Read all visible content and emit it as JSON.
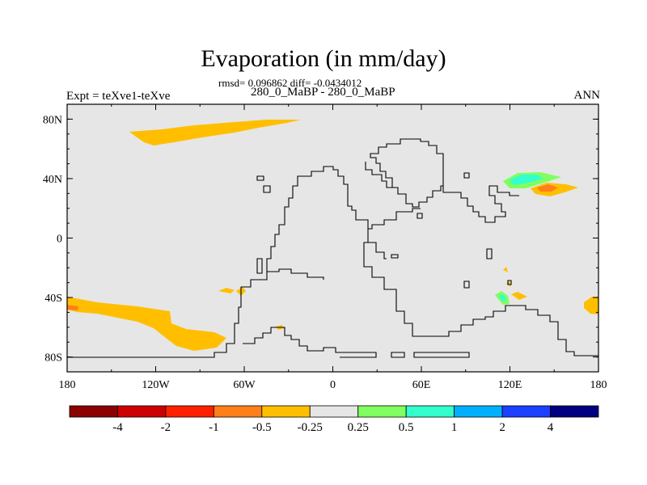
{
  "plot": {
    "title": "Evaporation (in mm/day)",
    "stats": "rmsd= 0.096862 diff= -0.0434012",
    "case_label": "280_0_MaBP - 280_0_MaBP",
    "experiment": "Expt = teXve1-teXve",
    "season": "ANN"
  },
  "axes": {
    "lat_ticks": [
      {
        "value": 80,
        "label": "80N"
      },
      {
        "value": 40,
        "label": "40N"
      },
      {
        "value": 0,
        "label": "0"
      },
      {
        "value": -40,
        "label": "40S"
      },
      {
        "value": -80,
        "label": "80S"
      }
    ],
    "lon_ticks": [
      {
        "value": -180,
        "label": "180"
      },
      {
        "value": -120,
        "label": "120W"
      },
      {
        "value": -60,
        "label": "60W"
      },
      {
        "value": 0,
        "label": "0"
      },
      {
        "value": 60,
        "label": "60E"
      },
      {
        "value": 120,
        "label": "120E"
      },
      {
        "value": 180,
        "label": "180"
      }
    ],
    "lon_range": [
      -180,
      180
    ],
    "lat_range": [
      -90,
      90
    ]
  },
  "colorbar": {
    "colors": [
      "#8b0000",
      "#cc0000",
      "#ff2000",
      "#ff7f1a",
      "#ffbf00",
      "#e6e6e6",
      "#80ff60",
      "#33ffcc",
      "#00b0ff",
      "#1c40ff",
      "#000080"
    ],
    "labels": [
      "-4",
      "-2",
      "-1",
      "-0.5",
      "-0.25",
      "0.25",
      "0.5",
      "1",
      "2",
      "4"
    ]
  },
  "style": {
    "background": "#e6e6e6",
    "coast_color": "#000000"
  },
  "chart_data": {
    "type": "heatmap",
    "title": "Evaporation (in mm/day)",
    "xlim": [
      -180,
      180
    ],
    "ylim": [
      -90,
      90
    ],
    "levels": [
      -4,
      -2,
      -1,
      -0.5,
      -0.25,
      0.25,
      0.5,
      1,
      2,
      4
    ],
    "regions": [
      {
        "level_band": "-0.5 to -0.25",
        "lon": [
          -140,
          -20
        ],
        "lat": [
          65,
          81
        ]
      },
      {
        "level_band": "-0.5 to -0.25",
        "lon": [
          -180,
          -80
        ],
        "lat": [
          -82,
          -40
        ]
      },
      {
        "level_band": "-0.25 to -0.5",
        "lon": [
          -80,
          -60
        ],
        "lat": [
          -42,
          -34
        ]
      },
      {
        "level_band": "-0.5 to -0.25",
        "lon": [
          165,
          180
        ],
        "lat": [
          -52,
          -40
        ]
      },
      {
        "level_band": "-1 to -0.5",
        "lon": [
          -180,
          -172
        ],
        "lat": [
          -48,
          -44
        ]
      },
      {
        "level_band": "0.25 to 1",
        "lon": [
          115,
          145
        ],
        "lat": [
          37,
          48
        ]
      },
      {
        "level_band": "-1 to -0.25",
        "lon": [
          135,
          165
        ],
        "lat": [
          28,
          40
        ]
      },
      {
        "level_band": "0.25 to 1",
        "lon": [
          110,
          118
        ],
        "lat": [
          -46,
          -36
        ]
      },
      {
        "level_band": "-0.5 to -0.25",
        "lon": [
          115,
          135
        ],
        "lat": [
          -46,
          -36
        ]
      },
      {
        "level_band": "-0.5 to -0.25",
        "lon": [
          -40,
          -33
        ],
        "lat": [
          -62,
          -58
        ]
      }
    ]
  }
}
